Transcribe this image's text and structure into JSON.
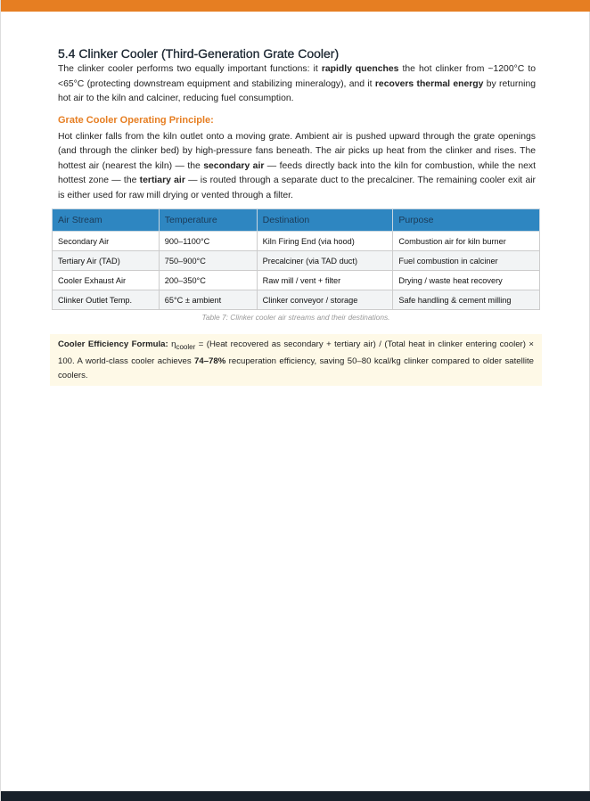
{
  "section": {
    "title": "5.4 Clinker Cooler (Third-Generation Grate Cooler)",
    "intro": {
      "t1": "The clinker cooler performs two equally important functions: it ",
      "b1": "rapidly quenches",
      "t2": " the hot clinker from ~1200°C to <65°C (protecting downstream equipment and stabilizing mineralogy), and it ",
      "b2": "recovers thermal energy",
      "t3": " by returning hot air to the kiln and calciner, reducing fuel consumption."
    },
    "subheading": "Grate Cooler Operating Principle:",
    "principle": {
      "t1": "Hot clinker falls from the kiln outlet onto a moving grate. Ambient air is pushed upward through the grate openings (and through the clinker bed) by high-pressure fans beneath. The air picks up heat from the clinker and rises. The hottest air (nearest the kiln) — the ",
      "b1": "secondary air",
      "t2": " — feeds directly back into the kiln for combustion, while the next hottest zone — the ",
      "b2": "tertiary air",
      "t3": " — is routed through a separate duct to the precalciner. The remaining cooler exit air is either used for raw mill drying or vented through a filter."
    }
  },
  "table": {
    "headers": [
      "Air Stream",
      "Temperature",
      "Destination",
      "Purpose"
    ],
    "rows": [
      [
        "Secondary Air",
        "900–1100°C",
        "Kiln Firing End (via hood)",
        "Combustion air for kiln burner"
      ],
      [
        "Tertiary Air (TAD)",
        "750–900°C",
        "Precalciner (via TAD duct)",
        "Fuel combustion in calciner"
      ],
      [
        "Cooler Exhaust Air",
        "200–350°C",
        "Raw mill / vent + filter",
        "Drying / waste heat recovery"
      ],
      [
        "Clinker Outlet Temp.",
        "65°C ± ambient",
        "Clinker conveyor / storage",
        "Safe handling & cement milling"
      ]
    ],
    "caption": "Table 7: Clinker cooler air streams and their destinations."
  },
  "note": {
    "label": "Cooler Efficiency Formula:",
    "eta": " η",
    "sub": "cooler",
    "t1": " = (Heat recovered as secondary + tertiary air) / (Total heat in clinker entering cooler) × 100. A world-class cooler achieves ",
    "b1": "74–78%",
    "t2": " recuperation efficiency, saving 50–80 kcal/kg clinker compared to older satellite coolers."
  },
  "colors": {
    "accent": "#E67E22",
    "header": "#2E86C1",
    "footer": "#17202A",
    "note_bg": "#FEF9E7"
  }
}
